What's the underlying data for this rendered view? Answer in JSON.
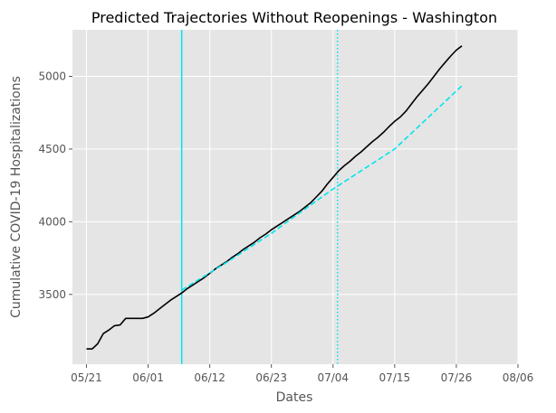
{
  "chart_data": {
    "type": "line",
    "title": "Predicted Trajectories Without Reopenings - Washington",
    "xlabel": "Dates",
    "ylabel": "Cumulative COVID-19 Hospitalizations",
    "x_ticks": [
      {
        "day": 0,
        "label": "05/21"
      },
      {
        "day": 11,
        "label": "06/01"
      },
      {
        "day": 22,
        "label": "06/12"
      },
      {
        "day": 33,
        "label": "06/23"
      },
      {
        "day": 44,
        "label": "07/04"
      },
      {
        "day": 55,
        "label": "07/15"
      },
      {
        "day": 66,
        "label": "07/26"
      },
      {
        "day": 77,
        "label": "08/06"
      }
    ],
    "y_ticks": [
      3500,
      4000,
      4500,
      5000
    ],
    "xlim_days": [
      -2.5,
      77
    ],
    "ylim": [
      3020,
      5320
    ],
    "grid": true,
    "background": "#e5e5e5",
    "vertical_lines": [
      {
        "day": 17,
        "style": "solid",
        "color": "#00e5ee"
      },
      {
        "day": 44.8,
        "style": "dotted",
        "color": "#00e5ee"
      }
    ],
    "series": [
      {
        "style": "solid",
        "color": "#000000",
        "points": [
          [
            0,
            3125
          ],
          [
            1,
            3125
          ],
          [
            2,
            3160
          ],
          [
            3,
            3230
          ],
          [
            4,
            3255
          ],
          [
            5,
            3285
          ],
          [
            6,
            3290
          ],
          [
            7,
            3335
          ],
          [
            8,
            3335
          ],
          [
            9,
            3335
          ],
          [
            10,
            3335
          ],
          [
            11,
            3345
          ],
          [
            12,
            3370
          ],
          [
            13,
            3400
          ],
          [
            14,
            3430
          ],
          [
            15,
            3460
          ],
          [
            16,
            3485
          ],
          [
            17,
            3510
          ],
          [
            18,
            3540
          ],
          [
            19,
            3565
          ],
          [
            20,
            3590
          ],
          [
            21,
            3615
          ],
          [
            22,
            3645
          ],
          [
            23,
            3675
          ],
          [
            24,
            3700
          ],
          [
            25,
            3725
          ],
          [
            26,
            3755
          ],
          [
            27,
            3780
          ],
          [
            28,
            3810
          ],
          [
            29,
            3835
          ],
          [
            30,
            3860
          ],
          [
            31,
            3890
          ],
          [
            32,
            3915
          ],
          [
            33,
            3945
          ],
          [
            34,
            3970
          ],
          [
            35,
            3995
          ],
          [
            36,
            4020
          ],
          [
            37,
            4045
          ],
          [
            38,
            4070
          ],
          [
            39,
            4100
          ],
          [
            40,
            4130
          ],
          [
            41,
            4170
          ],
          [
            42,
            4210
          ],
          [
            43,
            4260
          ],
          [
            44,
            4305
          ],
          [
            45,
            4350
          ],
          [
            46,
            4385
          ],
          [
            47,
            4415
          ],
          [
            48,
            4450
          ],
          [
            49,
            4480
          ],
          [
            50,
            4515
          ],
          [
            51,
            4550
          ],
          [
            52,
            4580
          ],
          [
            53,
            4615
          ],
          [
            54,
            4655
          ],
          [
            55,
            4690
          ],
          [
            56,
            4720
          ],
          [
            57,
            4760
          ],
          [
            58,
            4810
          ],
          [
            59,
            4860
          ],
          [
            60,
            4905
          ],
          [
            61,
            4950
          ],
          [
            62,
            5000
          ],
          [
            63,
            5050
          ],
          [
            64,
            5095
          ],
          [
            65,
            5140
          ],
          [
            66,
            5180
          ],
          [
            67,
            5210
          ]
        ]
      },
      {
        "style": "dashed",
        "color": "#00e5ee",
        "points": [
          [
            17,
            3530
          ],
          [
            25,
            3720
          ],
          [
            33,
            3920
          ],
          [
            38,
            4060
          ],
          [
            44,
            4225
          ],
          [
            55,
            4500
          ],
          [
            67,
            4935
          ]
        ]
      }
    ]
  }
}
